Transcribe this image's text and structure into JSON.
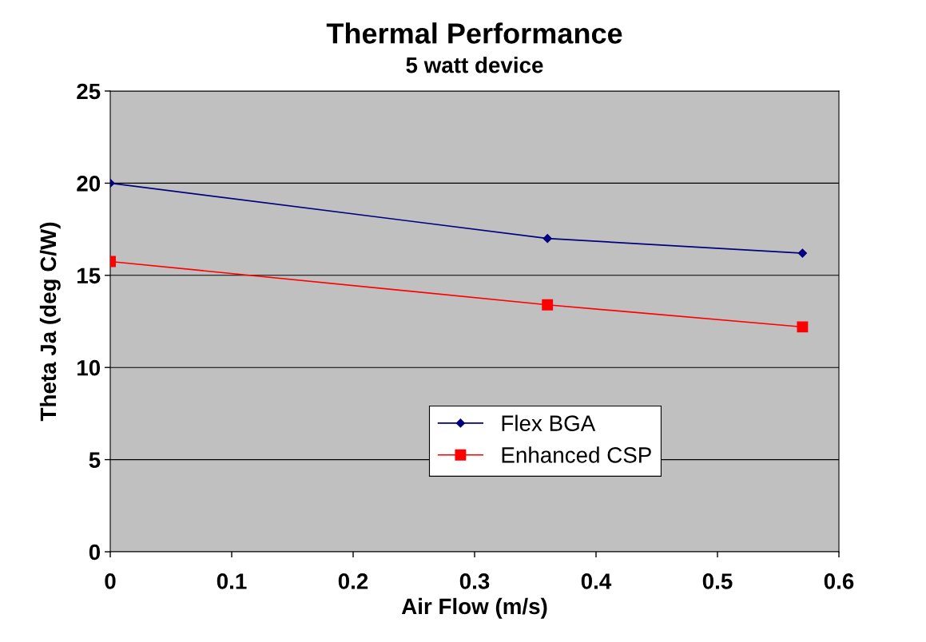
{
  "chart_data": {
    "type": "line",
    "title": "Thermal Performance",
    "subtitle": "5 watt device",
    "xlabel": "Air Flow (m/s)",
    "ylabel": "Theta Ja (deg C/W)",
    "x": [
      0,
      0.36,
      0.57
    ],
    "series": [
      {
        "name": "Flex BGA",
        "color": "#000080",
        "marker": "diamond",
        "values": [
          20.0,
          17.0,
          16.2
        ]
      },
      {
        "name": "Enhanced CSP",
        "color": "#ff0000",
        "marker": "square",
        "values": [
          15.75,
          13.4,
          12.2
        ]
      }
    ],
    "xlim": [
      0,
      0.6
    ],
    "xticks": [
      0,
      0.1,
      0.2,
      0.3,
      0.4,
      0.5,
      0.6
    ],
    "ylim": [
      0,
      25
    ],
    "yticks": [
      0,
      5,
      10,
      15,
      20,
      25
    ],
    "grid": "y",
    "legend": "bottom",
    "line_style": "solid"
  }
}
